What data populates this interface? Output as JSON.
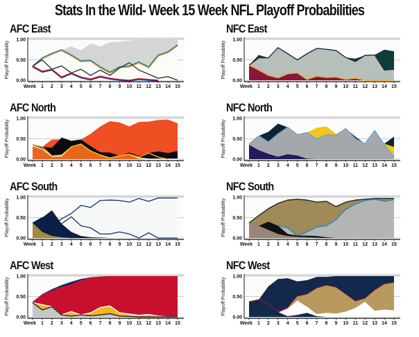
{
  "title": "Stats In the Wild- Week 15 Week NFL Playoff Probabilities",
  "chart_data": [
    {
      "type": "area",
      "title": "AFC East",
      "ylabel": "Playoff Probability",
      "yticks": [
        "1.00",
        "0.50",
        "0.00"
      ],
      "xticks": [
        "Week",
        "1",
        "2",
        "3",
        "4",
        "5",
        "6",
        "7",
        "8",
        "9",
        "10",
        "11",
        "12",
        "13",
        "14",
        "15"
      ],
      "ylim": [
        0,
        1
      ],
      "grid": true,
      "series": [
        {
          "fill": "#d4d5d5",
          "top": [
            0.35,
            0.55,
            0.65,
            0.73,
            0.83,
            0.73,
            0.9,
            0.83,
            0.93,
            0.95,
            0.97,
            1,
            1,
            1,
            1,
            1
          ],
          "bottom": [
            0.35,
            0.55,
            0.66,
            0.75,
            0.62,
            0.48,
            0.49,
            0.33,
            0.2,
            0.33,
            0.35,
            0.45,
            0.33,
            0.62,
            0.7,
            0.87
          ]
        },
        {
          "fill": "#fbfbf8",
          "top": [
            0.35,
            0.55,
            0.66,
            0.75,
            0.62,
            0.48,
            0.49,
            0.33,
            0.2,
            0.33,
            0.35,
            0.45,
            0.33,
            0.62,
            0.7,
            0.87
          ],
          "line": "#1a8c96",
          "line2": "#f08a24"
        },
        {
          "line": "#333333",
          "top": [
            0.35,
            0.5,
            0.27,
            0.35,
            0.18,
            0.27,
            0.12,
            0.25,
            0.12,
            0.3,
            0.43,
            0.25,
            0.15,
            0.05,
            0.09,
            0
          ]
        },
        {
          "line": "#c8102e",
          "line2": "#1c3f94",
          "top": [
            0.35,
            0.22,
            0.27,
            0.08,
            0.18,
            0.08,
            0.03,
            0.1,
            0.05,
            0.02,
            0,
            0.04,
            0.02,
            0,
            null,
            null
          ]
        }
      ]
    },
    {
      "type": "area",
      "title": "NFC East",
      "ylabel": "Playoff Probability",
      "yticks": [
        "1.00",
        "0.50",
        "0.00"
      ],
      "xticks": [
        "Week",
        "1",
        "2",
        "3",
        "4",
        "5",
        "6",
        "7",
        "8",
        "9",
        "10",
        "11",
        "12",
        "13",
        "14",
        "15"
      ],
      "ylim": [
        0,
        1
      ],
      "grid": true,
      "series": [
        {
          "fill": "#0f3d37",
          "top": [
            0.37,
            0.62,
            0.55,
            0.8,
            0.65,
            0.5,
            0.65,
            0.78,
            0.76,
            0.73,
            0.56,
            0.53,
            0.61,
            0.62,
            0.75,
            0.71
          ]
        },
        {
          "fill": "#b7bfbb",
          "top": [
            0.37,
            0.55,
            0.55,
            0.8,
            0.65,
            0.5,
            0.65,
            0.78,
            0.76,
            0.73,
            0.56,
            0.46,
            0.61,
            0.62,
            0.25,
            0.27
          ],
          "line": "#1b2a4a"
        },
        {
          "fill": "#8a1538",
          "top": [
            0.37,
            0.25,
            0.12,
            0.06,
            0.16,
            0.18,
            0.02,
            0.1,
            0.07,
            0.08,
            0.02,
            0.05,
            0,
            0,
            0,
            0
          ],
          "line": "#f3a625"
        }
      ]
    },
    {
      "type": "area",
      "title": "AFC North",
      "ylabel": "Playoff Probability",
      "yticks": [
        "1.00",
        "0.50",
        "0.00"
      ],
      "xticks": [
        "Week",
        "1",
        "2",
        "3",
        "4",
        "5",
        "6",
        "7",
        "8",
        "9",
        "10",
        "11",
        "12",
        "13",
        "14",
        "15"
      ],
      "ylim": [
        0,
        1
      ],
      "grid": true,
      "series": [
        {
          "fill": "#f04e23",
          "top": [
            0.35,
            0.3,
            0.48,
            0.48,
            0.45,
            0.48,
            0.62,
            0.8,
            0.93,
            0.9,
            0.8,
            0.91,
            0.92,
            0.96,
            0.97,
            0.88
          ]
        },
        {
          "fill": "#0b0b16",
          "top": [
            0.35,
            0.3,
            0.28,
            0.53,
            0.45,
            0.48,
            0.32,
            0.17,
            0.16,
            0.08,
            0.16,
            0.08,
            0.15,
            0.19,
            0.15,
            0.2
          ]
        },
        {
          "fill": "#e8661e",
          "top": [
            0.33,
            0.25,
            0.07,
            0.08,
            0.3,
            0.37,
            0.2,
            0.1,
            0.03,
            0.08,
            0.12,
            0.03,
            0,
            0,
            0,
            0
          ],
          "line": "#ffffff"
        },
        {
          "line": "#f5b800",
          "top": [
            0.36,
            0.3,
            0.08,
            0.1,
            0.3,
            0.37,
            0.2,
            0.1,
            0.03,
            0.08,
            0.12,
            0.05,
            0.15,
            0.05,
            0,
            null
          ]
        }
      ]
    },
    {
      "type": "area",
      "title": "NFC North",
      "ylabel": "Playoff Probability",
      "yticks": [
        "1.00",
        "0.50",
        "0.00"
      ],
      "xticks": [
        "Week",
        "1",
        "2",
        "3",
        "4",
        "5",
        "6",
        "7",
        "8",
        "9",
        "10",
        "11",
        "12",
        "13",
        "14",
        "15"
      ],
      "ylim": [
        0,
        1
      ],
      "grid": true,
      "series": [
        {
          "fill": "#0c2436",
          "top": [
            0.37,
            0.57,
            0.67,
            0.87,
            0.78,
            0.6,
            0.65,
            0.5,
            0.62,
            0.6,
            0.75,
            0.55,
            0.38,
            0.7,
            0.38,
            0.55
          ]
        },
        {
          "fill": "#f5c518",
          "top": [
            0.37,
            0.57,
            0.42,
            0.62,
            0.78,
            0.6,
            0.65,
            0.77,
            0.8,
            0.62,
            0.75,
            0.5,
            0.38,
            0.7,
            0.38,
            0.3
          ]
        },
        {
          "fill": "#a5a8ab",
          "top": [
            0.37,
            0.57,
            0.42,
            0.62,
            0.78,
            0.6,
            0.65,
            0.5,
            0.6,
            0.58,
            0.75,
            0.5,
            0.38,
            0.7,
            0.35,
            0.05
          ],
          "line": "#6aa5d1"
        },
        {
          "fill": "#241a5c",
          "top": [
            0.35,
            0.22,
            0.13,
            0.06,
            0.12,
            0.09,
            0.01,
            0,
            0,
            0,
            0,
            0,
            0,
            0,
            0,
            0
          ]
        }
      ]
    },
    {
      "type": "area",
      "title": "AFC South",
      "ylabel": "Playoff Probability",
      "yticks": [
        "1.00",
        "0.50",
        "0.00"
      ],
      "xticks": [
        "Week",
        "1",
        "2",
        "3",
        "4",
        "5",
        "6",
        "7",
        "8",
        "9",
        "10",
        "11",
        "12",
        "13",
        "14",
        "15"
      ],
      "ylim": [
        0,
        1
      ],
      "grid": true,
      "series": [
        {
          "fill": "#f6f8f8",
          "top": [
            0.37,
            0.5,
            0.3,
            0.47,
            0.6,
            0.8,
            0.75,
            0.92,
            0.93,
            0.92,
            0.88,
            0.97,
            0.9,
            0.98,
            0.98,
            0.98
          ],
          "line": "#1d3f75"
        },
        {
          "line": "#1d3f75",
          "top": [
            null,
            null,
            null,
            0.35,
            0.52,
            0.3,
            0.25,
            0.1,
            0.1,
            0.15,
            0.1,
            0,
            0.13,
            0,
            0,
            0
          ]
        },
        {
          "fill": "#0c1f45",
          "top": [
            0.37,
            0.5,
            0.68,
            0.35,
            0.15,
            0.05,
            0.02,
            0.01,
            0,
            0,
            0,
            0,
            0,
            0,
            0,
            0
          ]
        },
        {
          "fill": "#a38b3c",
          "top": [
            0.37,
            0.15,
            0.05,
            0.02,
            0,
            0,
            0,
            0,
            0,
            0,
            0,
            0,
            0,
            0,
            0,
            0
          ]
        }
      ]
    },
    {
      "type": "area",
      "title": "NFC South",
      "ylabel": "Playoff Probability",
      "yticks": [
        "1.00",
        "0.50",
        "0.00"
      ],
      "xticks": [
        "Week",
        "1",
        "2",
        "3",
        "4",
        "5",
        "6",
        "7",
        "8",
        "9",
        "10",
        "11",
        "12",
        "13",
        "14",
        "15"
      ],
      "ylim": [
        0,
        1
      ],
      "grid": true,
      "series": [
        {
          "fill": "#a08a58",
          "top": [
            0.37,
            0.55,
            0.72,
            0.85,
            0.93,
            0.95,
            0.93,
            0.88,
            0.9,
            0.77,
            0.88,
            0.93,
            0.95,
            0.97,
            0.97,
            0.97
          ],
          "line": "#222222"
        },
        {
          "fill": "#b3b5b5",
          "top": [
            null,
            null,
            null,
            0.3,
            0.25,
            0.05,
            0.15,
            0.27,
            0.3,
            0.45,
            0.7,
            0.83,
            0.92,
            0.95,
            0.9,
            0.94
          ],
          "line": "#1e88c8"
        },
        {
          "fill": "#111111",
          "top": [
            0.37,
            0.3,
            0.4,
            0.3,
            0.1,
            0.06,
            0.06,
            0.05,
            0.02,
            0,
            0,
            0,
            0,
            0,
            0,
            0
          ]
        },
        {
          "fill": "#9a8676",
          "top": [
            0.37,
            0.3,
            0.2,
            0.1,
            0.05,
            0.03,
            0.02,
            0.01,
            0,
            0,
            0,
            0,
            0,
            0,
            0,
            0
          ]
        }
      ]
    },
    {
      "type": "area",
      "title": "AFC West",
      "ylabel": "Playoff Probability",
      "yticks": [
        "1.00",
        "0.50",
        "0.00"
      ],
      "xticks": [
        "Week",
        "1",
        "2",
        "3",
        "4",
        "5",
        "6",
        "7",
        "8",
        "9",
        "10",
        "11",
        "12",
        "13",
        "14",
        "15"
      ],
      "ylim": [
        0,
        1
      ],
      "grid": true,
      "series": [
        {
          "fill": "#0e2a5c",
          "top": [
            0.37,
            0.56,
            0.68,
            0.78,
            0.86,
            0.93,
            0.97,
            0.99,
            1,
            1,
            1,
            1,
            1,
            1,
            1,
            1
          ]
        },
        {
          "fill": "#c8102e",
          "top": [
            0.37,
            0.55,
            0.65,
            0.74,
            0.8,
            0.9,
            0.96,
            0.99,
            1,
            1,
            1,
            1,
            1,
            1,
            1,
            1
          ]
        },
        {
          "fill": "#f2b61f",
          "top": [
            0.35,
            0.3,
            0.25,
            0.05,
            0.13,
            0.05,
            0.1,
            0.23,
            0.27,
            0.1,
            0.07,
            0.04,
            0.06,
            0.02,
            0,
            0
          ],
          "line": "#ffffff"
        },
        {
          "fill": "#c4c6c8",
          "top": [
            0.35,
            0.17,
            0.25,
            0.05,
            0.02,
            0.05,
            0.03,
            0.05,
            0.08,
            0.02,
            0.01,
            0,
            0,
            0,
            0,
            0
          ],
          "line": "#222222"
        }
      ]
    },
    {
      "type": "area",
      "title": "NFC West",
      "ylabel": "Playoff Probability",
      "yticks": [
        "1.00",
        "0.50",
        "0.00"
      ],
      "xticks": [
        "Week",
        "1",
        "2",
        "3",
        "4",
        "5",
        "6",
        "7",
        "8",
        "9",
        "10",
        "11",
        "12",
        "13",
        "14",
        "15"
      ],
      "ylim": [
        0,
        1
      ],
      "grid": true,
      "series": [
        {
          "fill": "#13294b",
          "top": [
            0.37,
            0.42,
            0.75,
            0.93,
            0.95,
            0.87,
            0.9,
            0.98,
            0.98,
            1,
            1,
            1,
            1,
            1,
            1,
            1
          ]
        },
        {
          "fill": "#ffffff",
          "top": [
            0.37,
            0.42,
            0.3,
            0.12,
            0.22,
            0.5,
            0.55,
            0.7,
            0.77,
            0.72,
            0.55,
            0.38,
            0.45,
            0.65,
            0.8,
            0.84
          ],
          "line": "#c8102e"
        },
        {
          "fill": "#b89a5e",
          "top": [
            null,
            null,
            null,
            null,
            0.22,
            0.5,
            0.55,
            0.7,
            0.77,
            0.72,
            0.55,
            0.38,
            0.45,
            0.65,
            0.8,
            0.84
          ],
          "bottom": [
            null,
            null,
            null,
            null,
            0.2,
            0.4,
            0.25,
            0.07,
            0.1,
            0.08,
            0.13,
            0.22,
            0.37,
            0.15,
            0.18,
            0.16
          ]
        },
        {
          "fill": "#13294b",
          "top": [
            0.37,
            0.42,
            0.3,
            0.12,
            0.02,
            0.05,
            0.1,
            0.02,
            0,
            0,
            0,
            0,
            0,
            0,
            0,
            0
          ]
        }
      ]
    }
  ]
}
